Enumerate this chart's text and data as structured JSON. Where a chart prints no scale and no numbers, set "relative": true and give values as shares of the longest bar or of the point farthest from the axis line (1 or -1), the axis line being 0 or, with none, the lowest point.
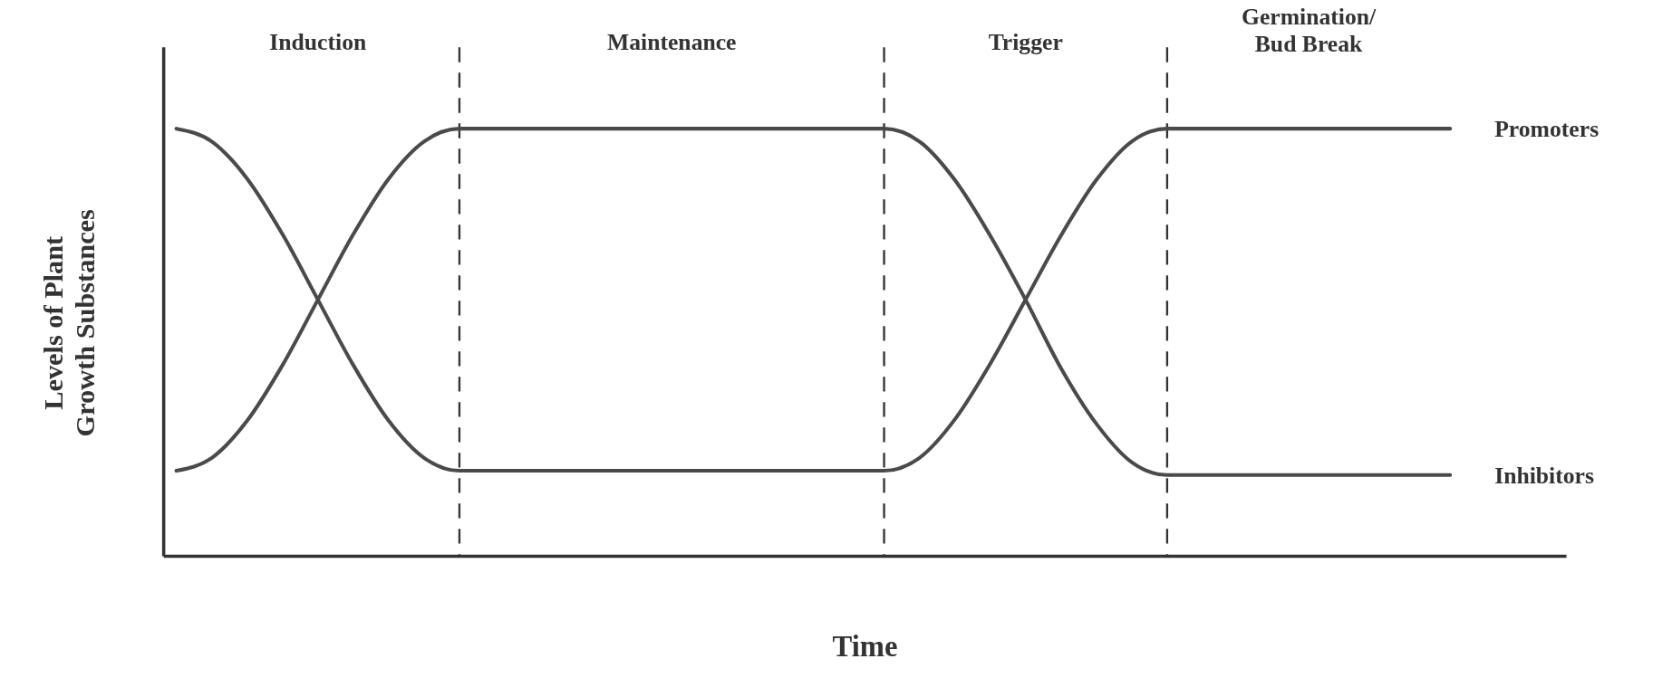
{
  "chart_data": {
    "type": "line",
    "relative": true,
    "xlabel": "Time",
    "ylabel": "Levels of Plant Growth Substances",
    "categories": [
      null,
      null,
      null,
      null,
      null,
      null,
      null,
      null,
      null,
      null,
      null,
      null,
      null,
      null,
      null,
      null,
      null,
      null,
      null,
      null,
      null,
      null,
      null,
      null,
      null,
      null,
      null,
      null,
      null,
      null,
      null,
      null,
      null,
      null,
      null,
      null,
      null
    ],
    "series": [
      {
        "name": "Promoters",
        "color": "#4a4a4a",
        "values": [
          1,
          0.97,
          0.883,
          0.753,
          0.6,
          0.447,
          0.317,
          0.23,
          0.2,
          0.2,
          0.2,
          0.2,
          0.2,
          0.2,
          0.2,
          0.2,
          0.2,
          0.2,
          0.2,
          0.2,
          0.2,
          0.23,
          0.32,
          0.45,
          0.6,
          0.75,
          0.88,
          0.97,
          1,
          1,
          1,
          1,
          1,
          1,
          1,
          1,
          1
        ]
      },
      {
        "name": "Inhibitors",
        "color": "#4a4a4a",
        "values": [
          0.2,
          0.23,
          0.317,
          0.447,
          0.6,
          0.753,
          0.883,
          0.97,
          1,
          1,
          1,
          1,
          1,
          1,
          1,
          1,
          1,
          1,
          1,
          1,
          1,
          0.97,
          0.88,
          0.75,
          0.6,
          0.44,
          0.31,
          0.22,
          0.19,
          0.19,
          0.19,
          0.19,
          0.19,
          0.19,
          0.19,
          0.19,
          0.19
        ]
      }
    ],
    "annotations": [
      "Induction",
      "Maintenance",
      "Trigger",
      "Germination/Bud Break"
    ],
    "grid": "x",
    "marker": "none",
    "line_style": "solid"
  }
}
